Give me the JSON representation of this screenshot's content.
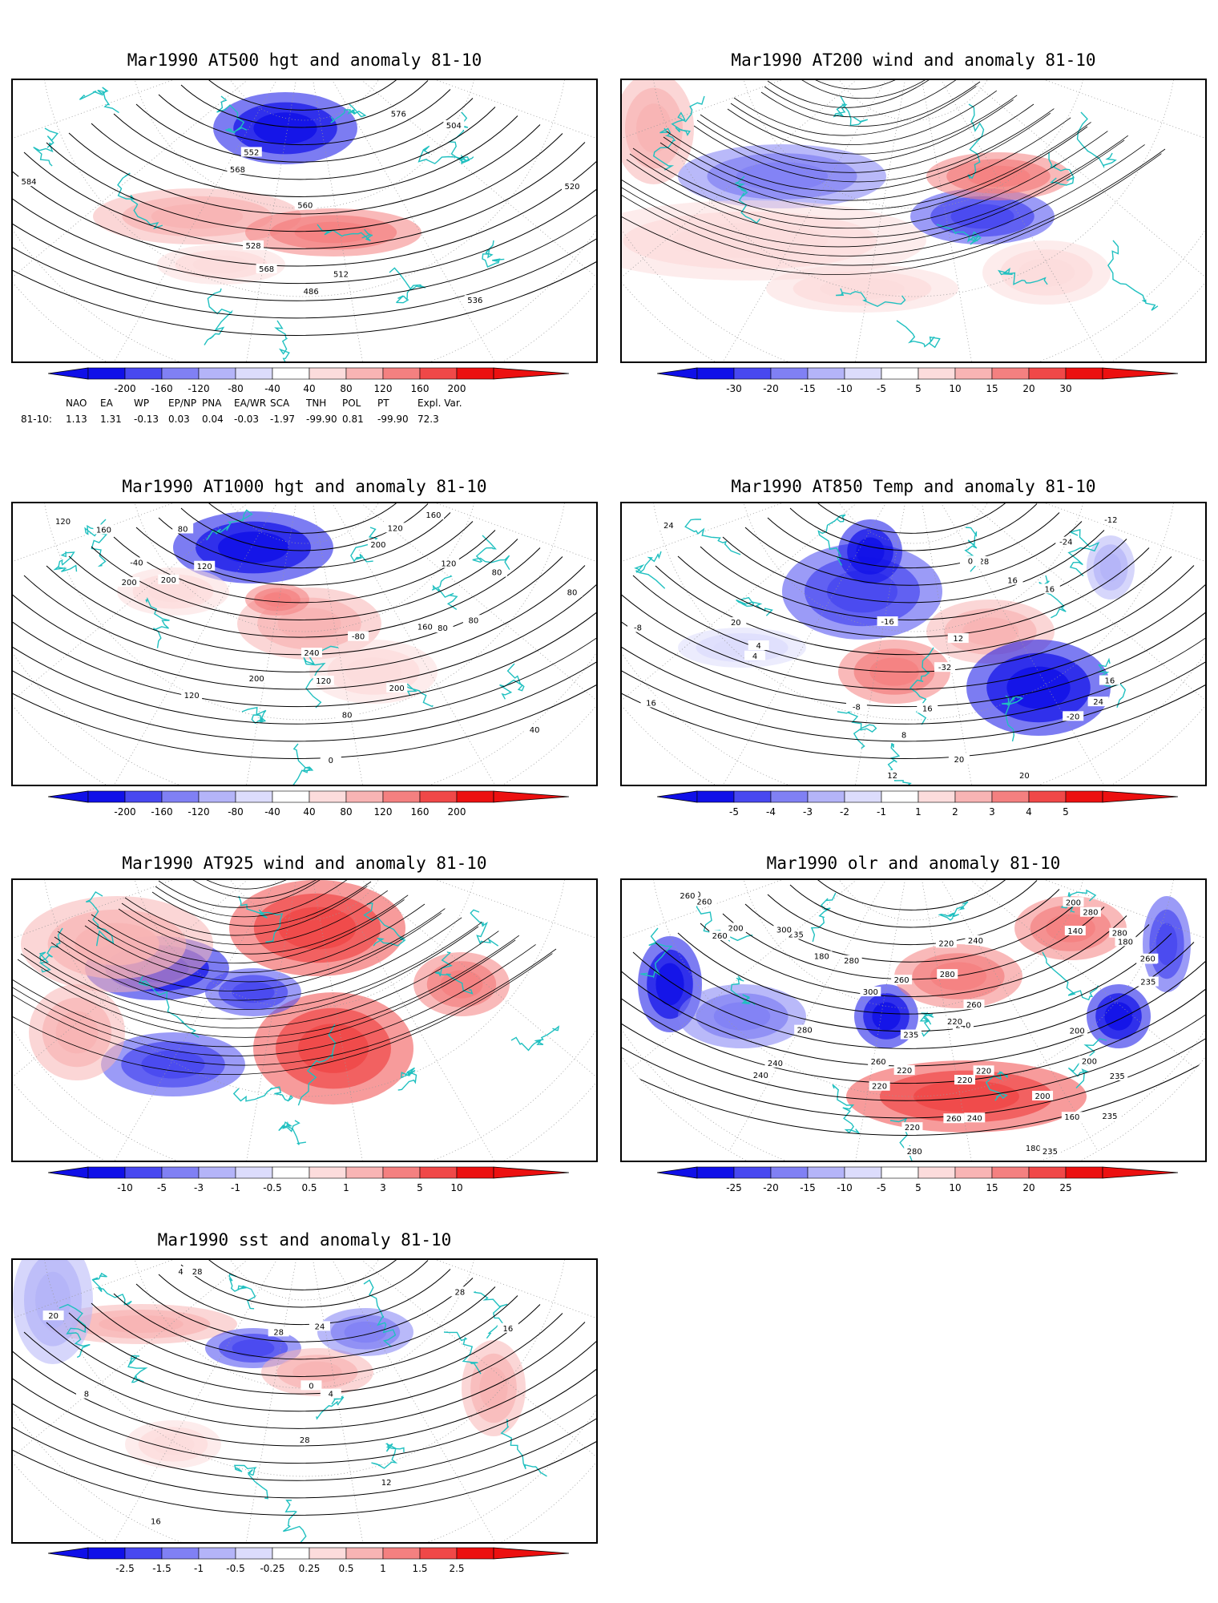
{
  "panels": [
    {
      "id": "p1",
      "title": "Mar1990 AT500 hgt and anomaly 81-10",
      "colorbar": [
        "-200",
        "-160",
        "-120",
        "-80",
        "-40",
        "40",
        "80",
        "120",
        "160",
        "200"
      ],
      "contour_labels": [
        "486",
        "504",
        "512",
        "520",
        "528",
        "536",
        "552",
        "560",
        "568",
        "568",
        "576",
        "584"
      ]
    },
    {
      "id": "p2",
      "title": "Mar1990 AT200 wind and anomaly 81-10",
      "colorbar": [
        "-30",
        "-20",
        "-15",
        "-10",
        "-5",
        "5",
        "10",
        "15",
        "20",
        "30"
      ],
      "contour_labels": []
    },
    {
      "id": "p3",
      "title": "Mar1990 AT1000 hgt and anomaly 81-10",
      "colorbar": [
        "-200",
        "-160",
        "-120",
        "-80",
        "-40",
        "40",
        "80",
        "120",
        "160",
        "200"
      ],
      "contour_labels": [
        "160",
        "80",
        "80",
        "-40",
        "-80",
        "0",
        "40",
        "80",
        "120",
        "200",
        "160",
        "240",
        "200",
        "200",
        "200",
        "200",
        "120",
        "120",
        "120",
        "160",
        "120",
        "80",
        "80",
        "80",
        "120"
      ]
    },
    {
      "id": "p4",
      "title": "Mar1990 AT850 Temp and anomaly 81-10",
      "colorbar": [
        "-5",
        "-4",
        "-3",
        "-2",
        "-1",
        "1",
        "2",
        "3",
        "4",
        "5"
      ],
      "contour_labels": [
        "16",
        "-24",
        "-32",
        "-28",
        "-20",
        "-16",
        "-12",
        "-8",
        "-8",
        "4",
        "0",
        "4",
        "16",
        "20",
        "8",
        "12",
        "12",
        "16",
        "16",
        "20",
        "24",
        "24",
        "16",
        "20"
      ]
    },
    {
      "id": "p5",
      "title": "Mar1990 AT925 wind and anomaly 81-10",
      "colorbar": [
        "-10",
        "-5",
        "-3",
        "-1",
        "-0.5",
        "0.5",
        "1",
        "3",
        "5",
        "10"
      ],
      "contour_labels": []
    },
    {
      "id": "p6",
      "title": "Mar1990 olr and anomaly 81-10",
      "colorbar": [
        "-25",
        "-20",
        "-15",
        "-10",
        "-5",
        "5",
        "10",
        "15",
        "20",
        "25"
      ],
      "contour_labels": [
        "280",
        "220",
        "140",
        "180",
        "200",
        "180",
        "300",
        "260",
        "180",
        "220",
        "240",
        "160",
        "235",
        "240",
        "200",
        "260",
        "235",
        "220",
        "235",
        "240",
        "220",
        "260",
        "200",
        "240",
        "280",
        "280",
        "260",
        "200",
        "235",
        "260",
        "220",
        "240",
        "260",
        "235",
        "235",
        "260",
        "280",
        "300",
        "220",
        "200",
        "280",
        "260",
        "280",
        "220",
        "240",
        "200"
      ]
    },
    {
      "id": "p7",
      "title": "Mar1990 sst and anomaly 81-10",
      "colorbar": [
        "-2.5",
        "-1.5",
        "-1",
        "-0.5",
        "-0.25",
        "0.25",
        "0.5",
        "1",
        "1.5",
        "2.5"
      ],
      "contour_labels": [
        "28",
        "28",
        "4",
        "0",
        "4",
        "8",
        "12",
        "16",
        "16",
        "20",
        "24",
        "28",
        "28"
      ]
    }
  ],
  "indices": {
    "headers": [
      "NAO",
      "EA",
      "WP",
      "EP/NP",
      "PNA",
      "EA/WR",
      "SCA",
      "TNH",
      "POL",
      "PT",
      "Expl. Var."
    ],
    "row_label": "81-10:",
    "values": [
      "1.13",
      "1.31",
      "-0.13",
      "0.03",
      "0.04",
      "-0.03",
      "-1.97",
      "-99.90",
      "0.81",
      "-99.90",
      "72.3"
    ]
  },
  "colors": {
    "coast": "#20c0c0",
    "contour": "#000000",
    "grid": "#999999",
    "neg": [
      "#1010e8",
      "#4848f0",
      "#8080f4",
      "#b4b4f8",
      "#dcdcfc"
    ],
    "pos": [
      "#fcdcdc",
      "#f8b4b4",
      "#f48080",
      "#f04848",
      "#ec1010"
    ]
  }
}
